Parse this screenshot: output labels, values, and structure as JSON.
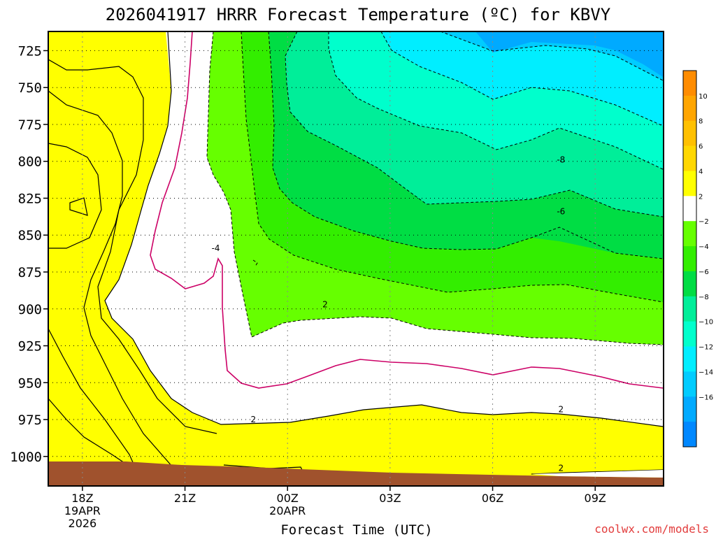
{
  "chart_data": {
    "type": "heatmap",
    "title": "2026041917 HRRR Forecast Temperature (ºC) for KBVY",
    "xlabel": "Forecast Time (UTC)",
    "ylabel": "",
    "credit": "coolwx.com/models",
    "x_ticks": [
      {
        "label": "18Z",
        "sub1": "19APR",
        "sub2": "2026",
        "hour": 18
      },
      {
        "label": "21Z",
        "sub1": "",
        "sub2": "",
        "hour": 21
      },
      {
        "label": "00Z",
        "sub1": "20APR",
        "sub2": "",
        "hour": 24
      },
      {
        "label": "03Z",
        "sub1": "",
        "sub2": "",
        "hour": 27
      },
      {
        "label": "06Z",
        "sub1": "",
        "sub2": "",
        "hour": 30
      },
      {
        "label": "09Z",
        "sub1": "",
        "sub2": "",
        "hour": 33
      }
    ],
    "xlim_hours": [
      17,
      35
    ],
    "ylim_hPa": [
      712,
      1020
    ],
    "y_ticks": [
      "725",
      "750",
      "775",
      "800",
      "825",
      "850",
      "875",
      "900",
      "925",
      "950",
      "975",
      "1000"
    ],
    "y_values": [
      725,
      750,
      775,
      800,
      825,
      850,
      875,
      900,
      925,
      950,
      975,
      1000
    ],
    "grid": true,
    "colorbar": {
      "labels": [
        "10",
        "8",
        "6",
        "4",
        "2",
        "−2",
        "−4",
        "−6",
        "−8",
        "−10",
        "−12",
        "−14",
        "−16"
      ],
      "colors": [
        "#ff8c00",
        "#ffa500",
        "#ffc000",
        "#ffd700",
        "#ffff00",
        "#ffffff",
        "#66ff00",
        "#33ee00",
        "#00dd44",
        "#00ee99",
        "#00ffcc",
        "#00eeff",
        "#00ccff",
        "#00aaff",
        "#0088ff"
      ]
    },
    "fill_colors": {
      "c8": "#ffa500",
      "c6": "#ffc000",
      "c4": "#ffd700",
      "c2": "#ffff00",
      "w": "#ffffff",
      "g1": "#66ff00",
      "g2": "#33ee00",
      "g3": "#00dd44",
      "g4": "#00ee99",
      "g5": "#00ffcc",
      "g6": "#00eeff",
      "g7": "#00ccff",
      "g8": "#00aaff",
      "ground": "#a0522d",
      "freeze_line": "#cc0066"
    },
    "contour_labels": [
      {
        "text": "2",
        "hour": 23.0,
        "p": 975
      },
      {
        "text": "2",
        "hour": 32.0,
        "p": 968
      },
      {
        "text": "2",
        "hour": 32.0,
        "p": 1008
      },
      {
        "text": "2",
        "hour": 25.1,
        "p": 897
      },
      {
        "text": "-8",
        "hour": 32.0,
        "p": 799
      },
      {
        "text": "-6",
        "hour": 32.0,
        "p": 834
      },
      {
        "text": "-4",
        "hour": 21.9,
        "p": 859
      }
    ]
  }
}
